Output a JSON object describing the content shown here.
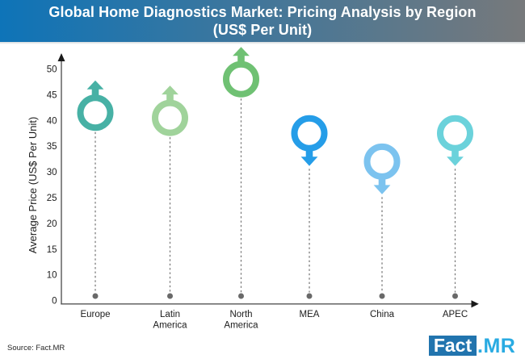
{
  "header": {
    "title_line1": "Global Home Diagnostics Market: Pricing Analysis by Region",
    "title_line2": "(US$ Per Unit)"
  },
  "chart_data": {
    "type": "scatter",
    "title": "Global Home Diagnostics Market: Pricing Analysis by Region (US$ Per Unit)",
    "xlabel": "",
    "ylabel": "Average Price (US$ Per Unit)",
    "y_tick_labels": [
      "0",
      "10",
      "15",
      "20",
      "25",
      "30",
      "35",
      "40",
      "45",
      "50"
    ],
    "ylim": [
      0,
      50
    ],
    "grid": false,
    "legend": false,
    "marker_style": "ring-with-trend-arrow",
    "categories": [
      "Europe",
      "Latin America",
      "North America",
      "MEA",
      "China",
      "APEC"
    ],
    "points": [
      {
        "category": "Europe",
        "label_lines": [
          "Europe"
        ],
        "value": 41.5,
        "trend": "up",
        "color": "#47B1A5"
      },
      {
        "category": "Latin America",
        "label_lines": [
          "Latin",
          "America"
        ],
        "value": 40.5,
        "trend": "up",
        "color": "#A0D39B"
      },
      {
        "category": "North America",
        "label_lines": [
          "North",
          "America"
        ],
        "value": 48,
        "trend": "up",
        "color": "#6FC173"
      },
      {
        "category": "MEA",
        "label_lines": [
          "MEA"
        ],
        "value": 37.5,
        "trend": "down",
        "color": "#259DE8"
      },
      {
        "category": "China",
        "label_lines": [
          "China"
        ],
        "value": 32,
        "trend": "down",
        "color": "#7CC3EF"
      },
      {
        "category": "APEC",
        "label_lines": [
          "APEC"
        ],
        "value": 37.5,
        "trend": "down",
        "color": "#6BD2DB"
      }
    ]
  },
  "footer": {
    "source_note": "Source: Fact.MR"
  },
  "logo": {
    "box_text": "Fact",
    "suffix_text": ".MR"
  },
  "colors": {
    "header_gradient_left": "#0E74B8",
    "header_gradient_right": "#77797B",
    "logo_box": "#2174AE",
    "logo_suffix": "#29ABE2",
    "axis_line": "#555555",
    "axis_arrow": "#1a1a1a",
    "dashed_line": "#7d7d7d",
    "baseline_dot": "#696969"
  }
}
